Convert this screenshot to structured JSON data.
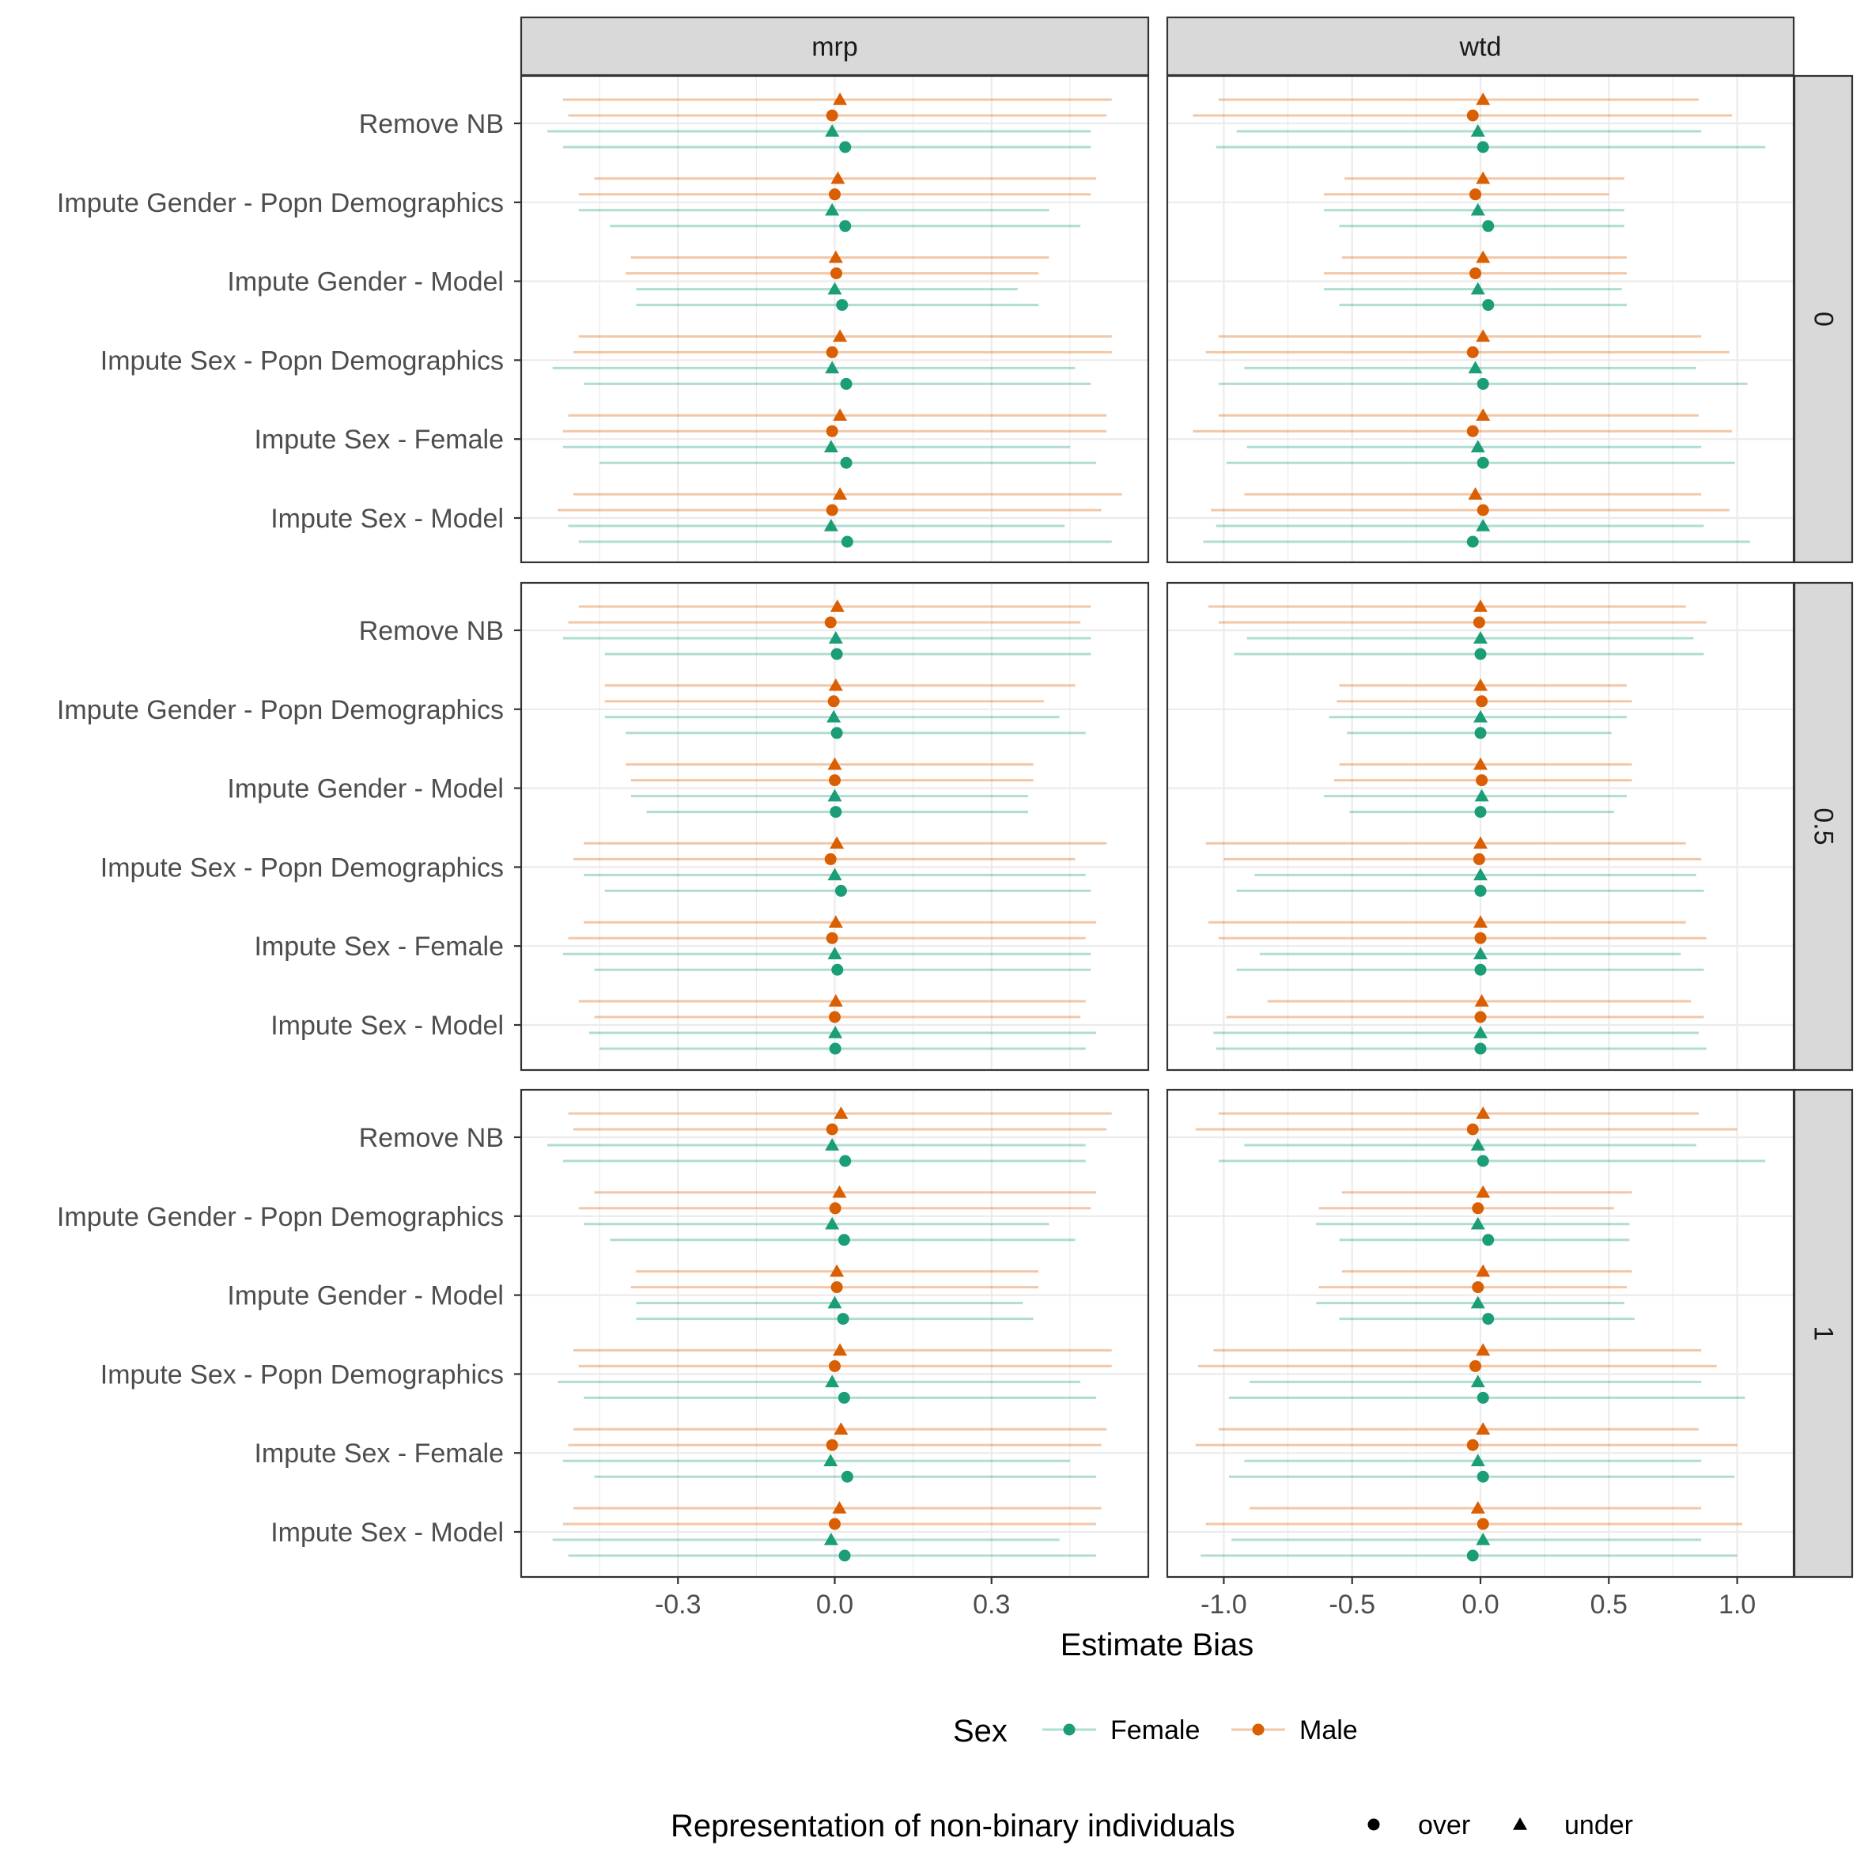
{
  "chart_data": {
    "type": "scatter",
    "subtype": "faceted point-range (dot and interval) plot",
    "facet_columns": [
      "mrp",
      "wtd"
    ],
    "facet_rows": [
      "0",
      "0.5",
      "1"
    ],
    "methods": [
      "Remove NB",
      "Impute Gender - Popn Demographics",
      "Impute Gender - Model",
      "Impute Sex - Popn Demographics",
      "Impute Sex - Female",
      "Impute Sex - Model"
    ],
    "xlabel": "Estimate Bias",
    "x_ticks": {
      "mrp": [
        "-0.3",
        "0.0",
        "0.3"
      ],
      "wtd": [
        "-1.0",
        "-0.5",
        "0.0",
        "0.5",
        "1.0"
      ]
    },
    "xlim": {
      "mrp": [
        -0.6,
        0.6
      ],
      "wtd": [
        -1.22,
        1.22
      ]
    },
    "grid": true,
    "legend_position": "bottom",
    "legend": {
      "color_title": "Sex",
      "colors": [
        {
          "label": "Female",
          "color": "#1B9E77"
        },
        {
          "label": "Male",
          "color": "#D95F02"
        }
      ],
      "shape_title": "Representation of non-binary individuals",
      "shapes": [
        {
          "label": "over",
          "shape": "circle"
        },
        {
          "label": "under",
          "shape": "triangle"
        }
      ]
    },
    "series_order_within_method": [
      "Male-under",
      "Male-over",
      "Female-under",
      "Female-over"
    ],
    "panels": [
      {
        "col": "mrp",
        "row": "0",
        "estimates": [
          [
            [
              0.01,
              -0.52,
              0.53
            ],
            [
              -0.005,
              -0.51,
              0.52
            ],
            [
              -0.005,
              -0.55,
              0.49
            ],
            [
              0.02,
              -0.52,
              0.49
            ]
          ],
          [
            [
              0.006,
              -0.46,
              0.5
            ],
            [
              0.0,
              -0.49,
              0.49
            ],
            [
              -0.005,
              -0.49,
              0.41
            ],
            [
              0.02,
              -0.43,
              0.47
            ]
          ],
          [
            [
              0.002,
              -0.39,
              0.41
            ],
            [
              0.003,
              -0.4,
              0.39
            ],
            [
              0.0,
              -0.38,
              0.35
            ],
            [
              0.014,
              -0.38,
              0.39
            ]
          ],
          [
            [
              0.01,
              -0.49,
              0.53
            ],
            [
              -0.005,
              -0.5,
              0.53
            ],
            [
              -0.005,
              -0.54,
              0.46
            ],
            [
              0.022,
              -0.48,
              0.49
            ]
          ],
          [
            [
              0.01,
              -0.51,
              0.52
            ],
            [
              -0.005,
              -0.52,
              0.52
            ],
            [
              -0.007,
              -0.52,
              0.45
            ],
            [
              0.022,
              -0.45,
              0.5
            ]
          ],
          [
            [
              0.01,
              -0.5,
              0.55
            ],
            [
              -0.005,
              -0.53,
              0.51
            ],
            [
              -0.007,
              -0.51,
              0.44
            ],
            [
              0.024,
              -0.49,
              0.53
            ]
          ]
        ]
      },
      {
        "col": "wtd",
        "row": "0",
        "estimates": [
          [
            [
              0.01,
              -1.02,
              0.85
            ],
            [
              -0.03,
              -1.12,
              0.98
            ],
            [
              -0.01,
              -0.95,
              0.86
            ],
            [
              0.01,
              -1.03,
              1.11
            ]
          ],
          [
            [
              0.01,
              -0.53,
              0.56
            ],
            [
              -0.02,
              -0.61,
              0.5
            ],
            [
              -0.01,
              -0.61,
              0.56
            ],
            [
              0.03,
              -0.55,
              0.56
            ]
          ],
          [
            [
              0.01,
              -0.54,
              0.57
            ],
            [
              -0.02,
              -0.61,
              0.57
            ],
            [
              -0.01,
              -0.61,
              0.55
            ],
            [
              0.03,
              -0.55,
              0.57
            ]
          ],
          [
            [
              0.01,
              -1.02,
              0.86
            ],
            [
              -0.03,
              -1.07,
              0.97
            ],
            [
              -0.02,
              -0.92,
              0.84
            ],
            [
              0.01,
              -1.02,
              1.04
            ]
          ],
          [
            [
              0.01,
              -1.02,
              0.85
            ],
            [
              -0.03,
              -1.12,
              0.98
            ],
            [
              -0.01,
              -0.91,
              0.86
            ],
            [
              0.01,
              -0.99,
              0.99
            ]
          ],
          [
            [
              -0.02,
              -0.92,
              0.86
            ],
            [
              0.01,
              -1.05,
              0.97
            ],
            [
              0.01,
              -1.03,
              0.87
            ],
            [
              -0.03,
              -1.08,
              1.05
            ]
          ]
        ]
      },
      {
        "col": "mrp",
        "row": "0.5",
        "estimates": [
          [
            [
              0.005,
              -0.49,
              0.49
            ],
            [
              -0.008,
              -0.51,
              0.47
            ],
            [
              0.002,
              -0.52,
              0.49
            ],
            [
              0.004,
              -0.44,
              0.49
            ]
          ],
          [
            [
              0.002,
              -0.44,
              0.46
            ],
            [
              -0.002,
              -0.44,
              0.4
            ],
            [
              -0.002,
              -0.44,
              0.43
            ],
            [
              0.004,
              -0.4,
              0.48
            ]
          ],
          [
            [
              0.0,
              -0.4,
              0.38
            ],
            [
              0.0,
              -0.39,
              0.38
            ],
            [
              0.0,
              -0.39,
              0.37
            ],
            [
              0.002,
              -0.36,
              0.37
            ]
          ],
          [
            [
              0.004,
              -0.48,
              0.52
            ],
            [
              -0.008,
              -0.5,
              0.46
            ],
            [
              0.0,
              -0.48,
              0.48
            ],
            [
              0.012,
              -0.44,
              0.49
            ]
          ],
          [
            [
              0.002,
              -0.48,
              0.5
            ],
            [
              -0.005,
              -0.51,
              0.48
            ],
            [
              0.0,
              -0.52,
              0.49
            ],
            [
              0.005,
              -0.46,
              0.49
            ]
          ],
          [
            [
              0.002,
              -0.49,
              0.48
            ],
            [
              0.0,
              -0.46,
              0.47
            ],
            [
              0.001,
              -0.47,
              0.5
            ],
            [
              0.001,
              -0.45,
              0.48
            ]
          ]
        ]
      },
      {
        "col": "wtd",
        "row": "0.5",
        "estimates": [
          [
            [
              0.0,
              -1.06,
              0.8
            ],
            [
              -0.005,
              -1.02,
              0.88
            ],
            [
              0.0,
              -0.91,
              0.83
            ],
            [
              0.0,
              -0.96,
              0.87
            ]
          ],
          [
            [
              0.0,
              -0.55,
              0.57
            ],
            [
              0.005,
              -0.56,
              0.59
            ],
            [
              0.0,
              -0.59,
              0.57
            ],
            [
              0.0,
              -0.52,
              0.51
            ]
          ],
          [
            [
              0.0,
              -0.55,
              0.59
            ],
            [
              0.005,
              -0.57,
              0.59
            ],
            [
              0.005,
              -0.61,
              0.57
            ],
            [
              0.0,
              -0.51,
              0.52
            ]
          ],
          [
            [
              0.0,
              -1.07,
              0.8
            ],
            [
              -0.005,
              -1.0,
              0.86
            ],
            [
              0.0,
              -0.88,
              0.84
            ],
            [
              0.0,
              -0.95,
              0.87
            ]
          ],
          [
            [
              0.0,
              -1.06,
              0.8
            ],
            [
              0.0,
              -1.02,
              0.88
            ],
            [
              0.0,
              -0.86,
              0.78
            ],
            [
              0.0,
              -0.95,
              0.87
            ]
          ],
          [
            [
              0.005,
              -0.83,
              0.82
            ],
            [
              0.0,
              -0.99,
              0.87
            ],
            [
              0.0,
              -1.04,
              0.85
            ],
            [
              0.0,
              -1.03,
              0.88
            ]
          ]
        ]
      },
      {
        "col": "mrp",
        "row": "1",
        "estimates": [
          [
            [
              0.012,
              -0.51,
              0.53
            ],
            [
              -0.005,
              -0.5,
              0.52
            ],
            [
              -0.005,
              -0.55,
              0.48
            ],
            [
              0.02,
              -0.52,
              0.48
            ]
          ],
          [
            [
              0.009,
              -0.46,
              0.5
            ],
            [
              0.001,
              -0.49,
              0.49
            ],
            [
              -0.005,
              -0.48,
              0.41
            ],
            [
              0.018,
              -0.43,
              0.46
            ]
          ],
          [
            [
              0.004,
              -0.38,
              0.39
            ],
            [
              0.004,
              -0.39,
              0.39
            ],
            [
              0.0,
              -0.38,
              0.36
            ],
            [
              0.016,
              -0.38,
              0.38
            ]
          ],
          [
            [
              0.01,
              -0.5,
              0.53
            ],
            [
              0.0,
              -0.49,
              0.53
            ],
            [
              -0.005,
              -0.53,
              0.47
            ],
            [
              0.018,
              -0.48,
              0.5
            ]
          ],
          [
            [
              0.012,
              -0.5,
              0.52
            ],
            [
              -0.005,
              -0.51,
              0.51
            ],
            [
              -0.008,
              -0.52,
              0.45
            ],
            [
              0.024,
              -0.46,
              0.5
            ]
          ],
          [
            [
              0.009,
              -0.5,
              0.51
            ],
            [
              0.0,
              -0.52,
              0.5
            ],
            [
              -0.007,
              -0.54,
              0.43
            ],
            [
              0.019,
              -0.51,
              0.5
            ]
          ]
        ]
      },
      {
        "col": "wtd",
        "row": "1",
        "estimates": [
          [
            [
              0.01,
              -1.02,
              0.85
            ],
            [
              -0.03,
              -1.11,
              1.0
            ],
            [
              -0.01,
              -0.92,
              0.84
            ],
            [
              0.01,
              -1.02,
              1.11
            ]
          ],
          [
            [
              0.01,
              -0.54,
              0.59
            ],
            [
              -0.01,
              -0.63,
              0.52
            ],
            [
              -0.01,
              -0.64,
              0.58
            ],
            [
              0.03,
              -0.55,
              0.58
            ]
          ],
          [
            [
              0.01,
              -0.54,
              0.59
            ],
            [
              -0.01,
              -0.63,
              0.57
            ],
            [
              -0.01,
              -0.64,
              0.56
            ],
            [
              0.03,
              -0.55,
              0.6
            ]
          ],
          [
            [
              0.01,
              -1.04,
              0.86
            ],
            [
              -0.02,
              -1.1,
              0.92
            ],
            [
              -0.01,
              -0.9,
              0.86
            ],
            [
              0.01,
              -0.98,
              1.03
            ]
          ],
          [
            [
              0.01,
              -1.02,
              0.85
            ],
            [
              -0.03,
              -1.11,
              1.0
            ],
            [
              -0.01,
              -0.92,
              0.86
            ],
            [
              0.01,
              -0.98,
              0.99
            ]
          ],
          [
            [
              -0.01,
              -0.9,
              0.86
            ],
            [
              0.01,
              -1.07,
              1.02
            ],
            [
              0.01,
              -0.97,
              0.86
            ],
            [
              -0.03,
              -1.09,
              1.0
            ]
          ]
        ]
      }
    ]
  }
}
